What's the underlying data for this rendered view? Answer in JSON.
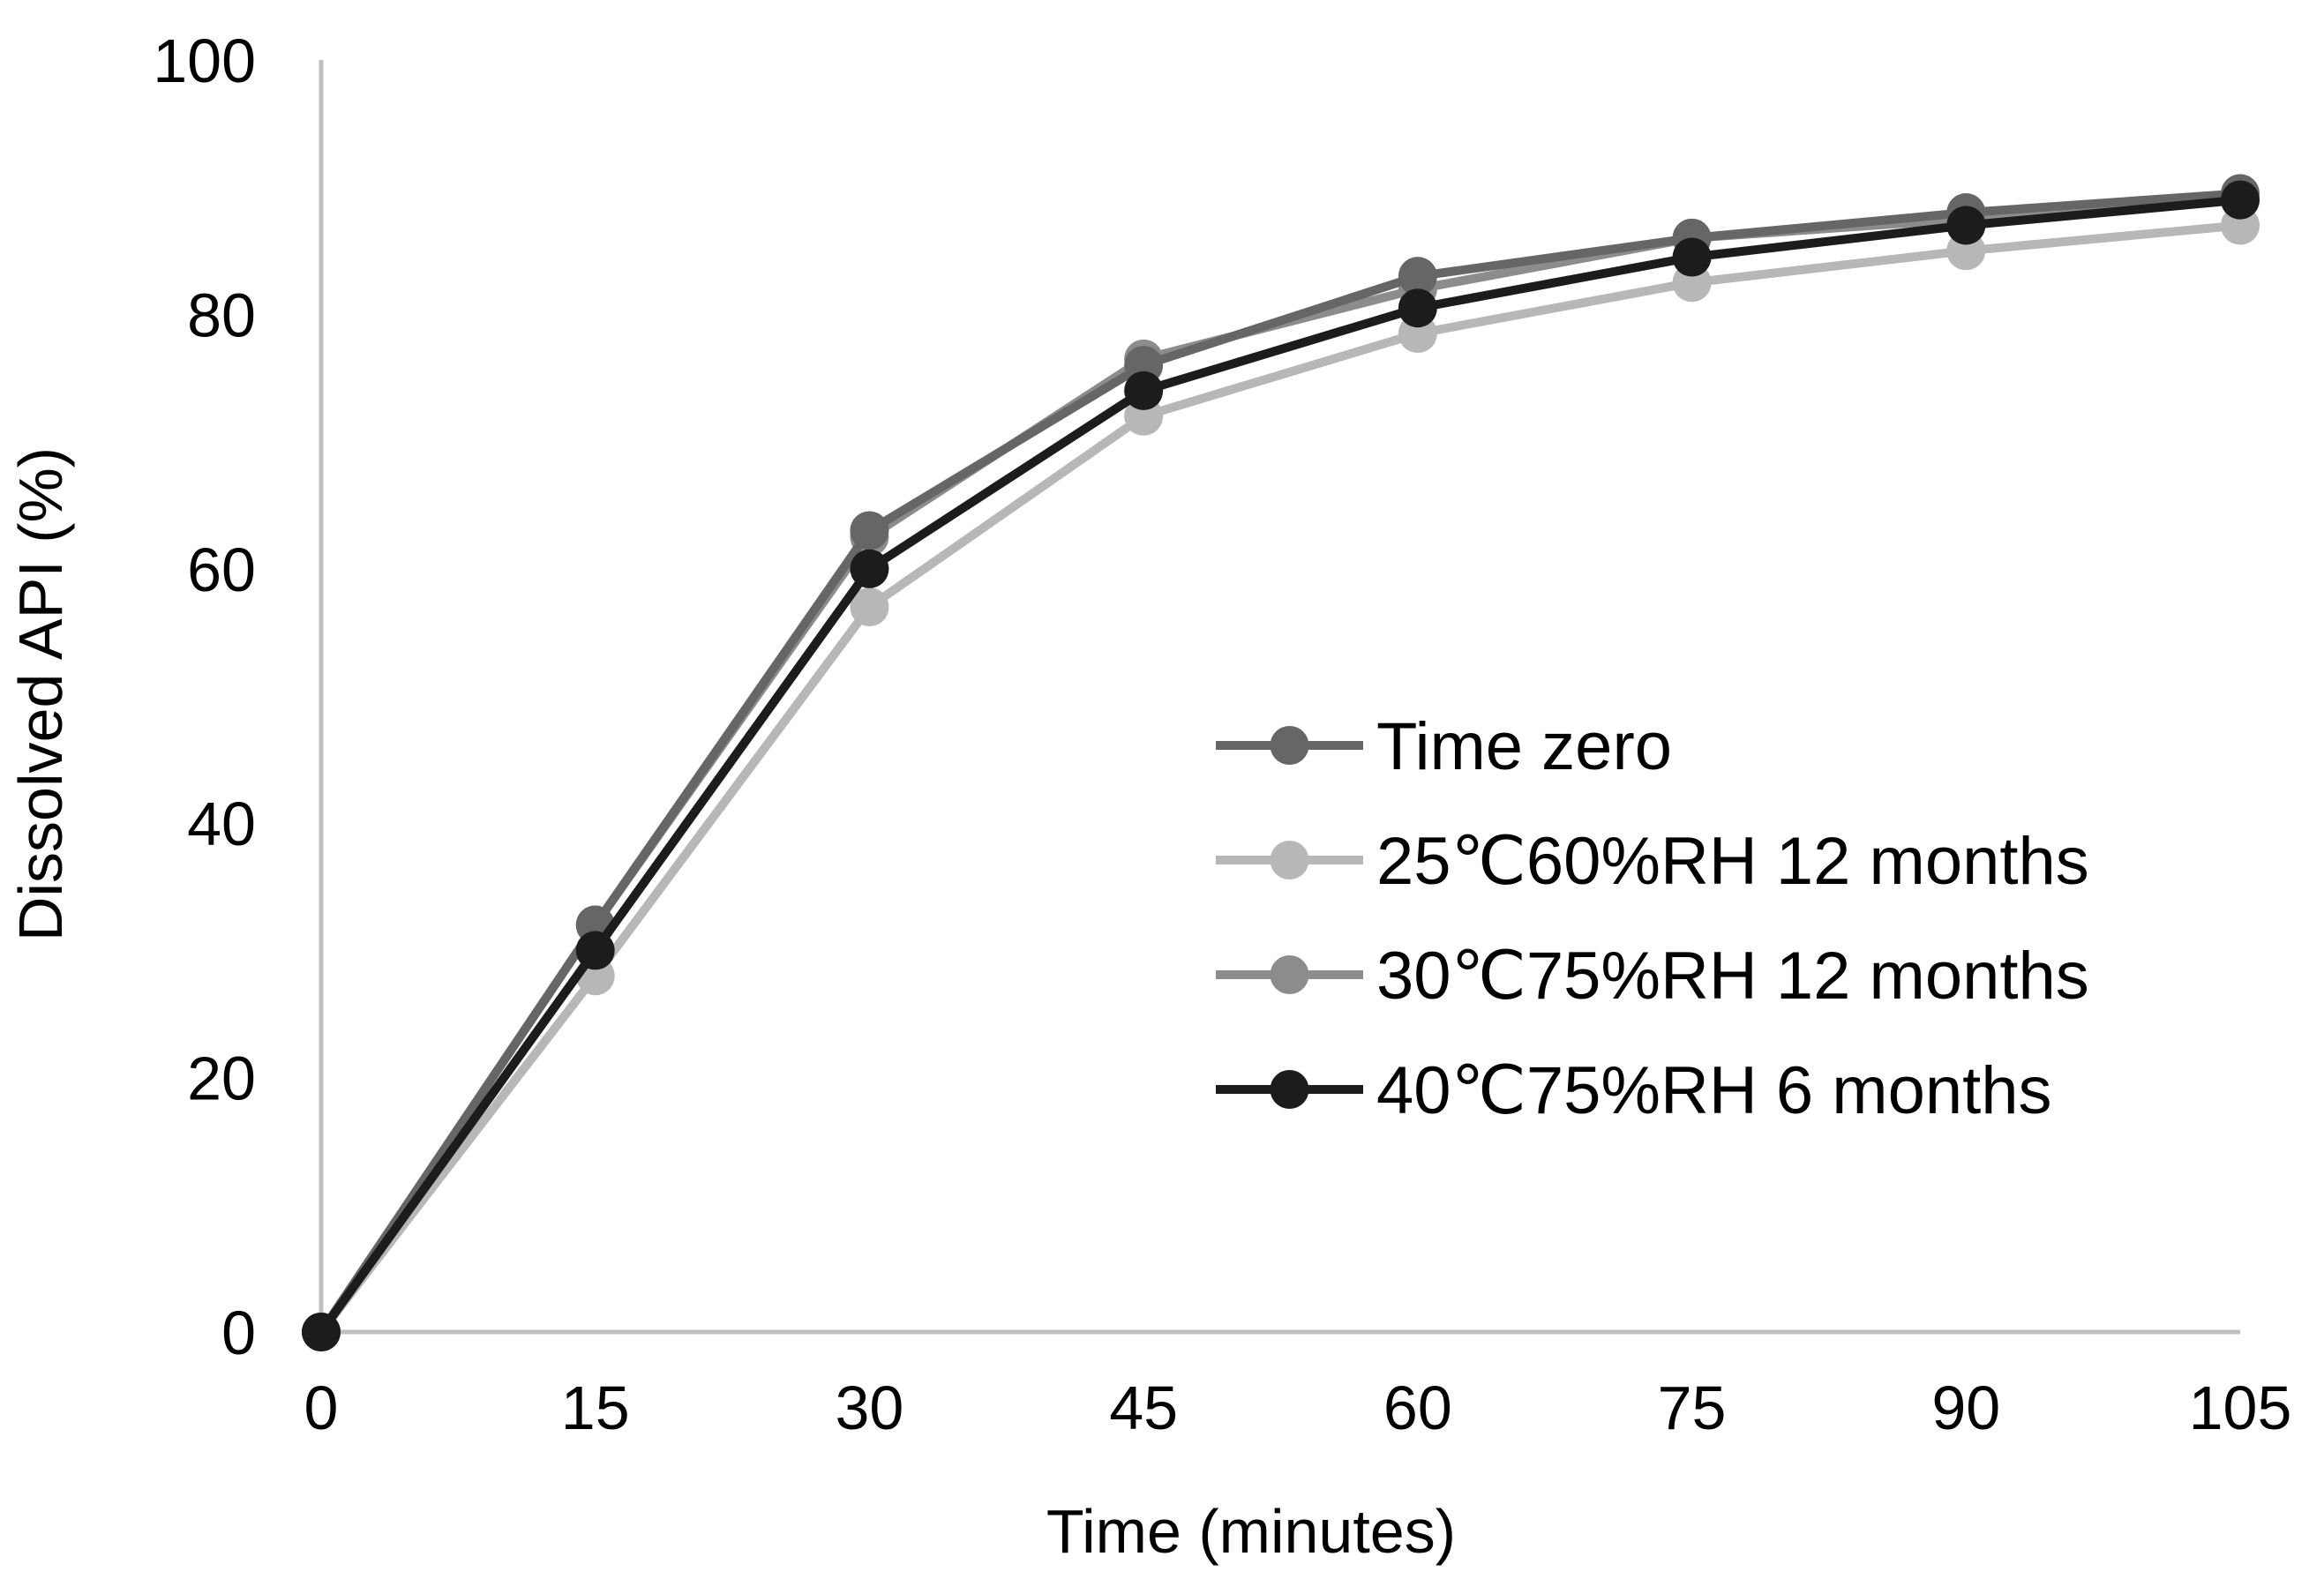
{
  "chart_data": {
    "type": "line",
    "title": "",
    "xlabel": "Time (minutes)",
    "ylabel": "Dissolved API (%)",
    "xlim": [
      0,
      105
    ],
    "ylim": [
      0,
      100
    ],
    "x_ticks": [
      "0",
      "15",
      "30",
      "45",
      "60",
      "75",
      "90",
      "105"
    ],
    "y_ticks": [
      "0",
      "20",
      "40",
      "60",
      "80",
      "100"
    ],
    "x": [
      0,
      15,
      30,
      45,
      60,
      75,
      90,
      105
    ],
    "grid": false,
    "legend_position": "center-right",
    "series": [
      {
        "name": "Time zero",
        "color": "#666666",
        "values": [
          0,
          32,
          63,
          76,
          83,
          86,
          88,
          89.5
        ]
      },
      {
        "name": "25℃60%RH 12 months",
        "color": "#b7b7b7",
        "values": [
          0,
          28,
          57,
          72,
          78.5,
          82.5,
          85,
          87
        ]
      },
      {
        "name": "30℃75%RH 12 months",
        "color": "#8c8c8c",
        "values": [
          0,
          32,
          62.5,
          76.5,
          82,
          86,
          87.5,
          89
        ]
      },
      {
        "name": "40℃75%RH 6 months",
        "color": "#1c1c1c",
        "values": [
          0,
          30,
          60,
          74,
          80.5,
          84.5,
          87,
          89
        ]
      }
    ]
  }
}
